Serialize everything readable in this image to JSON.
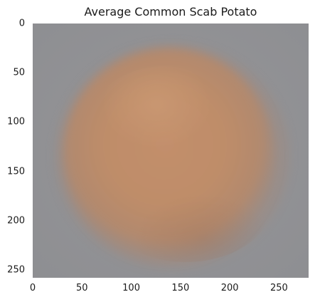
{
  "figure": {
    "title": "Average Common Scab Potato",
    "y_ticks": [
      "0",
      "50",
      "100",
      "150",
      "200",
      "250"
    ],
    "x_ticks": [
      "0",
      "50",
      "100",
      "150",
      "200",
      "250"
    ],
    "x_range": [
      0,
      280
    ],
    "y_range": [
      0,
      258
    ],
    "image_colors": {
      "background": "#8f8f93",
      "potato_center": "#c6906a",
      "potato_edge": "#a4826c"
    }
  }
}
